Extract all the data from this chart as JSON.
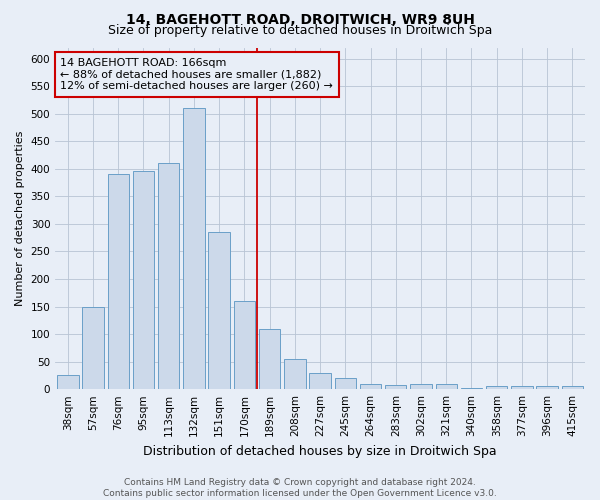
{
  "title": "14, BAGEHOTT ROAD, DROITWICH, WR9 8UH",
  "subtitle": "Size of property relative to detached houses in Droitwich Spa",
  "xlabel": "Distribution of detached houses by size in Droitwich Spa",
  "ylabel": "Number of detached properties",
  "categories": [
    "38sqm",
    "57sqm",
    "76sqm",
    "95sqm",
    "113sqm",
    "132sqm",
    "151sqm",
    "170sqm",
    "189sqm",
    "208sqm",
    "227sqm",
    "245sqm",
    "264sqm",
    "283sqm",
    "302sqm",
    "321sqm",
    "340sqm",
    "358sqm",
    "377sqm",
    "396sqm",
    "415sqm"
  ],
  "values": [
    25,
    150,
    390,
    395,
    410,
    510,
    285,
    160,
    110,
    55,
    30,
    20,
    10,
    8,
    10,
    10,
    3,
    5,
    5,
    5,
    5
  ],
  "bar_color": "#ccd9ea",
  "bar_edge_color": "#6a9fc8",
  "grid_color": "#b8c4d4",
  "background_color": "#e8eef7",
  "vline_x": 7.5,
  "vline_color": "#cc0000",
  "annotation_line1": "14 BAGEHOTT ROAD: 166sqm",
  "annotation_line2": "← 88% of detached houses are smaller (1,882)",
  "annotation_line3": "12% of semi-detached houses are larger (260) →",
  "annotation_box_color": "#cc0000",
  "ylim": [
    0,
    620
  ],
  "yticks": [
    0,
    50,
    100,
    150,
    200,
    250,
    300,
    350,
    400,
    450,
    500,
    550,
    600
  ],
  "footer_text": "Contains HM Land Registry data © Crown copyright and database right 2024.\nContains public sector information licensed under the Open Government Licence v3.0.",
  "title_fontsize": 10,
  "subtitle_fontsize": 9,
  "xlabel_fontsize": 9,
  "ylabel_fontsize": 8,
  "tick_fontsize": 7.5,
  "annotation_fontsize": 8,
  "footer_fontsize": 6.5
}
